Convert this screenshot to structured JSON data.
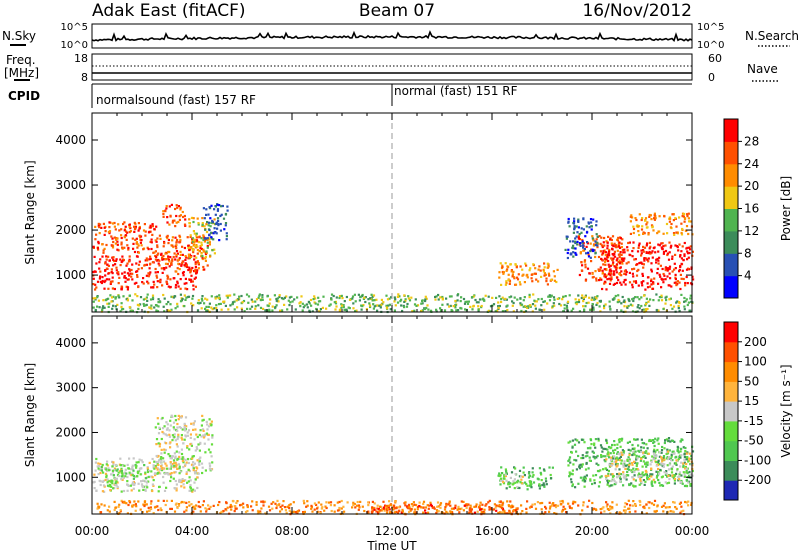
{
  "header": {
    "station": "Adak East (fitACF)",
    "beam": "Beam 07",
    "date": "16/Nov/2012"
  },
  "strip": {
    "nsky_label": "N.Sky",
    "nsearch_label": "N.Search",
    "log_top": "10^5",
    "log_bottom": "10^0",
    "freq_label": "Freq.",
    "freq_unit": "[MHz]",
    "freq_ticks": [
      "18",
      "8"
    ],
    "nave_label": "Nave",
    "nave_ticks": [
      "60",
      "0"
    ],
    "cpid_label": "CPID",
    "cpid_segments": [
      {
        "label": "normalsound (fast) 157 RF",
        "start_h": 0,
        "end_h": 12
      },
      {
        "label": "normal (fast) 151 RF",
        "start_h": 12,
        "end_h": 24
      }
    ]
  },
  "chart_data": [
    {
      "type": "heatmap",
      "quantity": "power",
      "ylabel": "Slant Range [km]",
      "xlabel": "Time UT",
      "xlim": [
        0,
        24
      ],
      "ylim": [
        180,
        4600
      ],
      "y_ticks": [
        "1000",
        "2000",
        "3000",
        "4000"
      ],
      "x_ticks": [
        "00:00",
        "04:00",
        "08:00",
        "12:00",
        "16:00",
        "20:00",
        "00:00"
      ],
      "colorbar": {
        "label": "Power [dB]",
        "ticks": [
          "4",
          "8",
          "12",
          "16",
          "20",
          "24",
          "28"
        ],
        "colors": [
          "#0000ff",
          "#2850b4",
          "#3c8c5a",
          "#50b450",
          "#f0c814",
          "#ff8c00",
          "#ff5000",
          "#ff0000"
        ]
      },
      "regions": [
        {
          "t": [
            0.0,
            4.2
          ],
          "r": [
            700,
            1450
          ],
          "level": 7
        },
        {
          "t": [
            2.5,
            4.6
          ],
          "r": [
            1100,
            1900
          ],
          "level": 6
        },
        {
          "t": [
            3.8,
            4.9
          ],
          "r": [
            1400,
            2300
          ],
          "level": 4
        },
        {
          "t": [
            4.4,
            5.4
          ],
          "r": [
            1800,
            2600
          ],
          "level": 1
        },
        {
          "t": [
            0.0,
            2.6
          ],
          "r": [
            1500,
            2200
          ],
          "level": 6
        },
        {
          "t": [
            2.8,
            3.7
          ],
          "r": [
            2100,
            2600
          ],
          "level": 6
        },
        {
          "t": [
            16.2,
            18.6
          ],
          "r": [
            800,
            1300
          ],
          "level": 5
        },
        {
          "t": [
            19.4,
            21.2
          ],
          "r": [
            900,
            1900
          ],
          "level": 6
        },
        {
          "t": [
            20.3,
            24.0
          ],
          "r": [
            700,
            1750
          ],
          "level": 7
        },
        {
          "t": [
            18.9,
            20.2
          ],
          "r": [
            1400,
            2300
          ],
          "level": 1
        },
        {
          "t": [
            21.5,
            24.0
          ],
          "r": [
            1900,
            2400
          ],
          "level": 5
        },
        {
          "t": [
            0.0,
            24.0
          ],
          "r": [
            200,
            600
          ],
          "level": 3
        }
      ]
    },
    {
      "type": "heatmap",
      "quantity": "velocity",
      "ylabel": "Slant Range [km]",
      "xlabel": "Time UT",
      "xlim": [
        0,
        24
      ],
      "ylim": [
        180,
        4600
      ],
      "y_ticks": [
        "1000",
        "2000",
        "3000",
        "4000"
      ],
      "x_ticks": [
        "00:00",
        "04:00",
        "08:00",
        "12:00",
        "16:00",
        "20:00",
        "00:00"
      ],
      "colorbar": {
        "label": "Velocity [m s⁻¹]",
        "ticks": [
          "200",
          "100",
          "50",
          "15",
          "-15",
          "-50",
          "-100",
          "-200"
        ],
        "colors": [
          "#1e28b4",
          "#3c8c5a",
          "#50c850",
          "#64dc3c",
          "#c8c8c8",
          "#ffb43c",
          "#ff8c00",
          "#ff5000",
          "#ff0000"
        ]
      },
      "regions": [
        {
          "t": [
            0.0,
            4.2
          ],
          "r": [
            700,
            1450
          ],
          "level": 4
        },
        {
          "t": [
            2.5,
            4.8
          ],
          "r": [
            1100,
            2400
          ],
          "level": 4
        },
        {
          "t": [
            0.3,
            2.3
          ],
          "r": [
            800,
            1300
          ],
          "level": 3
        },
        {
          "t": [
            16.2,
            18.4
          ],
          "r": [
            750,
            1250
          ],
          "level": 2
        },
        {
          "t": [
            16.3,
            17.2
          ],
          "r": [
            800,
            1100
          ],
          "level": 4
        },
        {
          "t": [
            19.0,
            24.0
          ],
          "r": [
            800,
            1900
          ],
          "level": 2
        },
        {
          "t": [
            20.5,
            24.0
          ],
          "r": [
            900,
            1600
          ],
          "level": 4
        },
        {
          "t": [
            0.0,
            24.0
          ],
          "r": [
            200,
            500
          ],
          "level": 6
        },
        {
          "t": [
            11.0,
            17.0
          ],
          "r": [
            200,
            420
          ],
          "level": 7
        }
      ]
    }
  ]
}
